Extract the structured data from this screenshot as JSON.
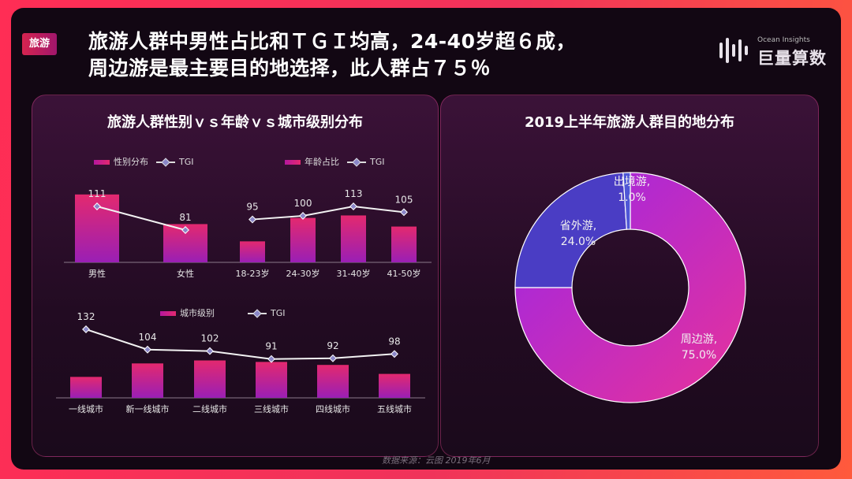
{
  "tag": "旅游",
  "headline": {
    "line1": "旅游人群中男性占比和ＴＧＩ均高，24-40岁超６成，",
    "line2": "周边游是最主要目的地选择，此人群占７５％"
  },
  "logo": {
    "en": "Ocean Insights",
    "cn": "巨量算数"
  },
  "left_panel_title": "旅游人群性别ｖｓ年龄ｖｓ城市级别分布",
  "right_panel_title": "2019上半年旅游人群目的地分布",
  "source": "数据来源：云图 2019年6月",
  "legend": {
    "gender": "性别分布",
    "age": "年龄占比",
    "city": "城市级别",
    "tgi": "TGI"
  },
  "colors": {
    "bar_top": "#e3296f",
    "bar_bottom": "#9a1fb5",
    "line": "#f2f2f2",
    "marker": "#8a86c8"
  },
  "chart_data": [
    {
      "type": "bar",
      "title": "性别分布",
      "categories": [
        "男性",
        "女性"
      ],
      "values": [
        55,
        31
      ],
      "tgi": [
        111,
        81
      ],
      "ylim": [
        0,
        60
      ]
    },
    {
      "type": "bar",
      "title": "年龄占比",
      "categories": [
        "18-23岁",
        "24-30岁",
        "31-40岁",
        "41-50岁"
      ],
      "values": [
        17,
        36,
        38,
        29
      ],
      "tgi": [
        95,
        100,
        113,
        105
      ],
      "ylim": [
        0,
        60
      ]
    },
    {
      "type": "bar",
      "title": "城市级别",
      "categories": [
        "一线城市",
        "新一线城市",
        "二线城市",
        "三线城市",
        "四线城市",
        "五线城市"
      ],
      "values": [
        14,
        23,
        25,
        24,
        22,
        16
      ],
      "tgi": [
        132,
        104,
        102,
        91,
        92,
        98
      ],
      "ylim": [
        0,
        40
      ]
    },
    {
      "type": "pie",
      "title": "2019上半年旅游人群目的地分布",
      "categories": [
        "周边游",
        "省外游",
        "出境游"
      ],
      "values": [
        75.0,
        24.0,
        1.0
      ],
      "labels": [
        "75.0%",
        "24.0%",
        "1.0%"
      ]
    }
  ]
}
